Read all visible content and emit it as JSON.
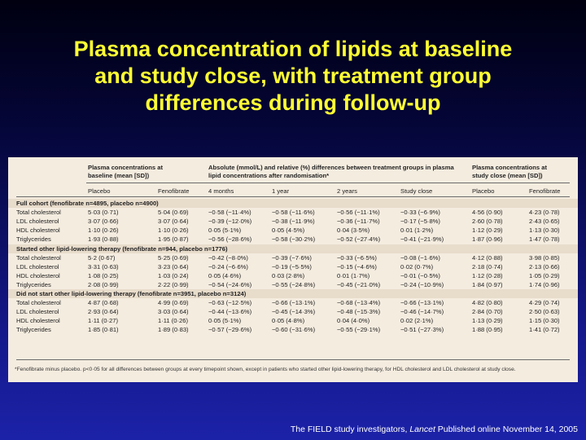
{
  "title_lines": [
    "Plasma concentration of lipids at baseline",
    "and study close, with treatment group",
    "differences during follow-up"
  ],
  "table": {
    "group_headers": {
      "baseline": [
        "Plasma concentrations at",
        "baseline (mean [SD])"
      ],
      "differences": [
        "Absolute (mmol/L) and relative (%) differences between treatment groups in plasma",
        "lipid concentrations after randomisation*"
      ],
      "close": [
        "Plasma concentrations at",
        "study close (mean [SD])"
      ]
    },
    "columns": [
      "Placebo",
      "Fenofibrate",
      "4 months",
      "1 year",
      "2 years",
      "Study close",
      "Placebo",
      "Fenofibrate"
    ],
    "sections": [
      {
        "title": "Full cohort (fenofibrate n=4895, placebo n=4900)",
        "rows": [
          {
            "label": "Total cholesterol",
            "cells": [
              "5·03 (0·71)",
              "5·04 (0·69)",
              "−0·58 (−11·4%)",
              "−0·58 (−11·6%)",
              "−0·56 (−11·1%)",
              "−0·33 (−6·9%)",
              "4·56 (0·90)",
              "4·23 (0·78)"
            ]
          },
          {
            "label": "LDL cholesterol",
            "cells": [
              "3·07 (0·66)",
              "3·07 (0·64)",
              "−0·39 (−12·0%)",
              "−0·38 (−11·9%)",
              "−0·36 (−11·7%)",
              "−0·17 (−5·8%)",
              "2·60 (0·78)",
              "2·43 (0·65)"
            ]
          },
          {
            "label": "HDL cholesterol",
            "cells": [
              "1·10 (0·26)",
              "1·10 (0·26)",
              "0·05 (5·1%)",
              "0·05 (4·5%)",
              "0·04 (3·5%)",
              "0·01 (1·2%)",
              "1·12 (0·29)",
              "1·13 (0·30)"
            ]
          },
          {
            "label": "Triglycerides",
            "cells": [
              "1·93 (0·88)",
              "1·95 (0·87)",
              "−0·56 (−28·6%)",
              "−0·58 (−30·2%)",
              "−0·52 (−27·4%)",
              "−0·41 (−21·9%)",
              "1·87 (0·96)",
              "1·47 (0·78)"
            ]
          }
        ]
      },
      {
        "title": "Started other lipid-lowering therapy (fenofibrate n=944, placebo n=1776)",
        "rows": [
          {
            "label": "Total cholesterol",
            "cells": [
              "5·2 (0·67)",
              "5·25 (0·69)",
              "−0·42 (−8·0%)",
              "−0·39 (−7·6%)",
              "−0·33 (−6·5%)",
              "−0·08 (−1·6%)",
              "4·12 (0·88)",
              "3·98 (0·85)"
            ]
          },
          {
            "label": "LDL cholesterol",
            "cells": [
              "3·31 (0·63)",
              "3·23 (0·64)",
              "−0·24 (−6·6%)",
              "−0·19 (−5·5%)",
              "−0·15 (−4·6%)",
              "0·02 (0·7%)",
              "2·18 (0·74)",
              "2·13 (0·66)"
            ]
          },
          {
            "label": "HDL cholesterol",
            "cells": [
              "1·08 (0·25)",
              "1·03 (0·24)",
              "0·05 (4·6%)",
              "0·03 (2·8%)",
              "0·01 (1·7%)",
              "−0·01 (−0·5%)",
              "1·12 (0·28)",
              "1·05 (0·29)"
            ]
          },
          {
            "label": "Triglycerides",
            "cells": [
              "2·08 (0·99)",
              "2·22 (0·99)",
              "−0·54 (−24·6%)",
              "−0·55 (−24·8%)",
              "−0·45 (−21·0%)",
              "−0·24 (−10·9%)",
              "1·84 (0·97)",
              "1·74 (0·96)"
            ]
          }
        ]
      },
      {
        "title": "Did not start other lipid-lowering therapy (fenofibrate n=3951, placebo n=3124)",
        "rows": [
          {
            "label": "Total cholesterol",
            "cells": [
              "4·87 (0·68)",
              "4·99 (0·69)",
              "−0·63 (−12·5%)",
              "−0·66 (−13·1%)",
              "−0·68 (−13·4%)",
              "−0·66 (−13·1%)",
              "4·82 (0·80)",
              "4·29 (0·74)"
            ]
          },
          {
            "label": "LDL cholesterol",
            "cells": [
              "2·93 (0·64)",
              "3·03 (0·64)",
              "−0·44 (−13·6%)",
              "−0·45 (−14·3%)",
              "−0·48 (−15·3%)",
              "−0·46 (−14·7%)",
              "2·84 (0·70)",
              "2·50 (0·63)"
            ]
          },
          {
            "label": "HDL cholesterol",
            "cells": [
              "1·11 (0·27)",
              "1·11 (0·26)",
              "0·05 (5·1%)",
              "0·05 (4·8%)",
              "0·04 (4·0%)",
              "0·02 (2·1%)",
              "1·13 (0·29)",
              "1·15 (0·30)"
            ]
          },
          {
            "label": "Triglycerides",
            "cells": [
              "1·85 (0·81)",
              "1·89 (0·83)",
              "−0·57 (−29·6%)",
              "−0·60 (−31·6%)",
              "−0·55 (−29·1%)",
              "−0·51 (−27·3%)",
              "1·88 (0·95)",
              "1·41 (0·72)"
            ]
          }
        ]
      }
    ],
    "footnote": "*Fenofibrate minus placebo. p<0·05 for all differences between groups at every timepoint shown, except in patients who started other lipid-lowering therapy, for HDL cholesterol and LDL cholesterol at study close."
  },
  "citation": {
    "authors": "The FIELD study investigators, ",
    "journal": "Lancet",
    "rest": "  Published online November 14, 2005"
  }
}
